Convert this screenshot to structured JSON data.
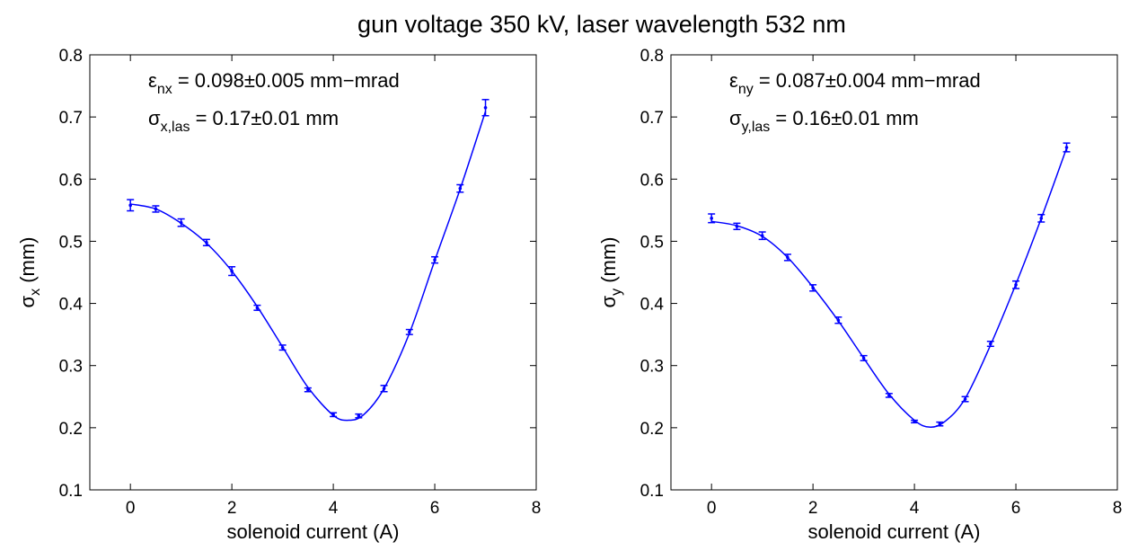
{
  "figure": {
    "title": "gun voltage 350 kV, laser wavelength 532 nm"
  },
  "colors": {
    "curve": "#0000ff",
    "axes": "#000000",
    "background": "#ffffff"
  },
  "chart_data": [
    {
      "type": "scatter",
      "title": "",
      "xlabel": "solenoid current (A)",
      "ylabel_symbol": "σ",
      "ylabel_sub": "x",
      "ylabel_unit": " (mm)",
      "xlim": [
        -0.8,
        8
      ],
      "ylim": [
        0.1,
        0.8
      ],
      "xticks": [
        0,
        2,
        4,
        6,
        8
      ],
      "yticks": [
        0.1,
        0.2,
        0.3,
        0.4,
        0.5,
        0.6,
        0.7,
        0.8
      ],
      "grid": false,
      "annotations": [
        {
          "symbol": "ε",
          "sub": "nx",
          "rest": " = 0.098±0.005 mm−mrad"
        },
        {
          "symbol": "σ",
          "sub": "x,las",
          "rest": " = 0.17±0.01 mm"
        }
      ],
      "series": [
        {
          "kind": "measurements",
          "x": [
            0,
            0.5,
            1,
            1.5,
            2,
            2.5,
            3,
            3.5,
            4,
            4.5,
            5,
            5.5,
            6,
            6.5,
            7
          ],
          "y": [
            0.558,
            0.552,
            0.53,
            0.498,
            0.452,
            0.393,
            0.329,
            0.261,
            0.221,
            0.219,
            0.263,
            0.354,
            0.47,
            0.585,
            0.715
          ],
          "err": [
            0.009,
            0.005,
            0.006,
            0.005,
            0.007,
            0.004,
            0.004,
            0.003,
            0.003,
            0.003,
            0.005,
            0.004,
            0.005,
            0.006,
            0.013
          ]
        },
        {
          "kind": "fit",
          "x": [
            0,
            0.5,
            1,
            1.5,
            2,
            2.5,
            3,
            3.5,
            4,
            4.3,
            4.6,
            5,
            5.5,
            6,
            6.5,
            7
          ],
          "y": [
            0.56,
            0.552,
            0.529,
            0.497,
            0.452,
            0.395,
            0.33,
            0.265,
            0.22,
            0.212,
            0.221,
            0.263,
            0.352,
            0.469,
            0.584,
            0.709
          ]
        }
      ]
    },
    {
      "type": "scatter",
      "title": "",
      "xlabel": "solenoid current (A)",
      "ylabel_symbol": "σ",
      "ylabel_sub": "y",
      "ylabel_unit": " (mm)",
      "xlim": [
        -0.8,
        8
      ],
      "ylim": [
        0.1,
        0.8
      ],
      "xticks": [
        0,
        2,
        4,
        6,
        8
      ],
      "yticks": [
        0.1,
        0.2,
        0.3,
        0.4,
        0.5,
        0.6,
        0.7,
        0.8
      ],
      "grid": false,
      "annotations": [
        {
          "symbol": "ε",
          "sub": "ny",
          "rest": " = 0.087±0.004 mm−mrad"
        },
        {
          "symbol": "σ",
          "sub": "y,las",
          "rest": " = 0.16±0.01 mm"
        }
      ],
      "series": [
        {
          "kind": "measurements",
          "x": [
            0,
            0.5,
            1,
            1.5,
            2,
            2.5,
            3,
            3.5,
            4,
            4.5,
            5,
            5.5,
            6,
            6.5,
            7
          ],
          "y": [
            0.537,
            0.524,
            0.509,
            0.474,
            0.425,
            0.373,
            0.312,
            0.252,
            0.21,
            0.206,
            0.246,
            0.335,
            0.43,
            0.537,
            0.651
          ],
          "err": [
            0.007,
            0.005,
            0.006,
            0.005,
            0.005,
            0.005,
            0.004,
            0.003,
            0.002,
            0.003,
            0.004,
            0.004,
            0.006,
            0.006,
            0.007
          ]
        },
        {
          "kind": "fit",
          "x": [
            0,
            0.5,
            1,
            1.5,
            2,
            2.5,
            3,
            3.5,
            4,
            4.3,
            4.6,
            5,
            5.5,
            6,
            6.5,
            7
          ],
          "y": [
            0.532,
            0.525,
            0.508,
            0.474,
            0.426,
            0.372,
            0.312,
            0.254,
            0.212,
            0.201,
            0.21,
            0.247,
            0.333,
            0.431,
            0.537,
            0.65
          ]
        }
      ]
    }
  ]
}
